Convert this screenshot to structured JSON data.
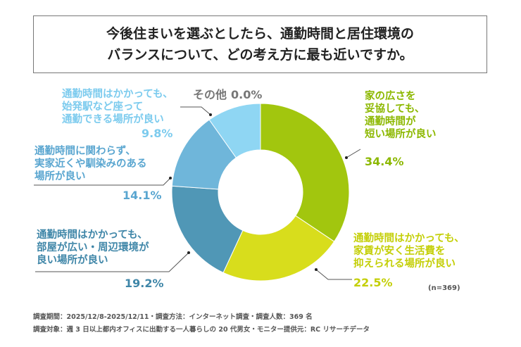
{
  "title": {
    "line1": "今後住まいを選ぶとしたら、通勤時間と居住環境の",
    "line2": "バランスについて、どの考え方に最も近いですか。"
  },
  "chart_data": {
    "type": "pie",
    "donut": true,
    "title": "今後住まいを選ぶとしたら、通勤時間と居住環境のバランスについて、どの考え方に最も近いですか。",
    "slices": [
      {
        "label": [
          "家の広さを",
          "妥協しても、",
          "通勤時間が",
          "短い場所が良い"
        ],
        "value": 34.4,
        "pct": "34.4%",
        "color": "#a2c60e",
        "text_color": "#8cb800"
      },
      {
        "label": [
          "通勤時間はかかっても、",
          "家賃が安く生活費を",
          "抑えられる場所が良い"
        ],
        "value": 22.5,
        "pct": "22.5%",
        "color": "#d8dd1c",
        "text_color": "#c4cf08"
      },
      {
        "label": [
          "通勤時間はかかっても、",
          "部屋が広い・周辺環境が",
          "良い場所が良い"
        ],
        "value": 19.2,
        "pct": "19.2%",
        "color": "#5097b6",
        "text_color": "#3f86a8"
      },
      {
        "label": [
          "通勤時間に関わらず、",
          "実家近くや馴染みのある",
          "場所が良い"
        ],
        "value": 14.1,
        "pct": "14.1%",
        "color": "#6fb6da",
        "text_color": "#5aa6d0"
      },
      {
        "label": [
          "通勤時間はかかっても、",
          "始発駅など座って",
          "通勤できる場所が良い"
        ],
        "value": 9.8,
        "pct": "9.8%",
        "color": "#8fd6f3",
        "text_color": "#7ccbee"
      },
      {
        "label": [
          "その他"
        ],
        "value": 0.0,
        "pct": "0.0%",
        "color": "#777777",
        "text_color": "#777777"
      }
    ]
  },
  "sample": "(n=369)",
  "footer": {
    "line1": "調査期間：2025/12/8-2025/12/11・調査方法：インターネット調査・調査人数：369 名",
    "line2": "調査対象：週 3 日以上都内オフィスに出勤する一人暮らしの 20 代男女・モニター提供元：RC リサーチデータ"
  }
}
